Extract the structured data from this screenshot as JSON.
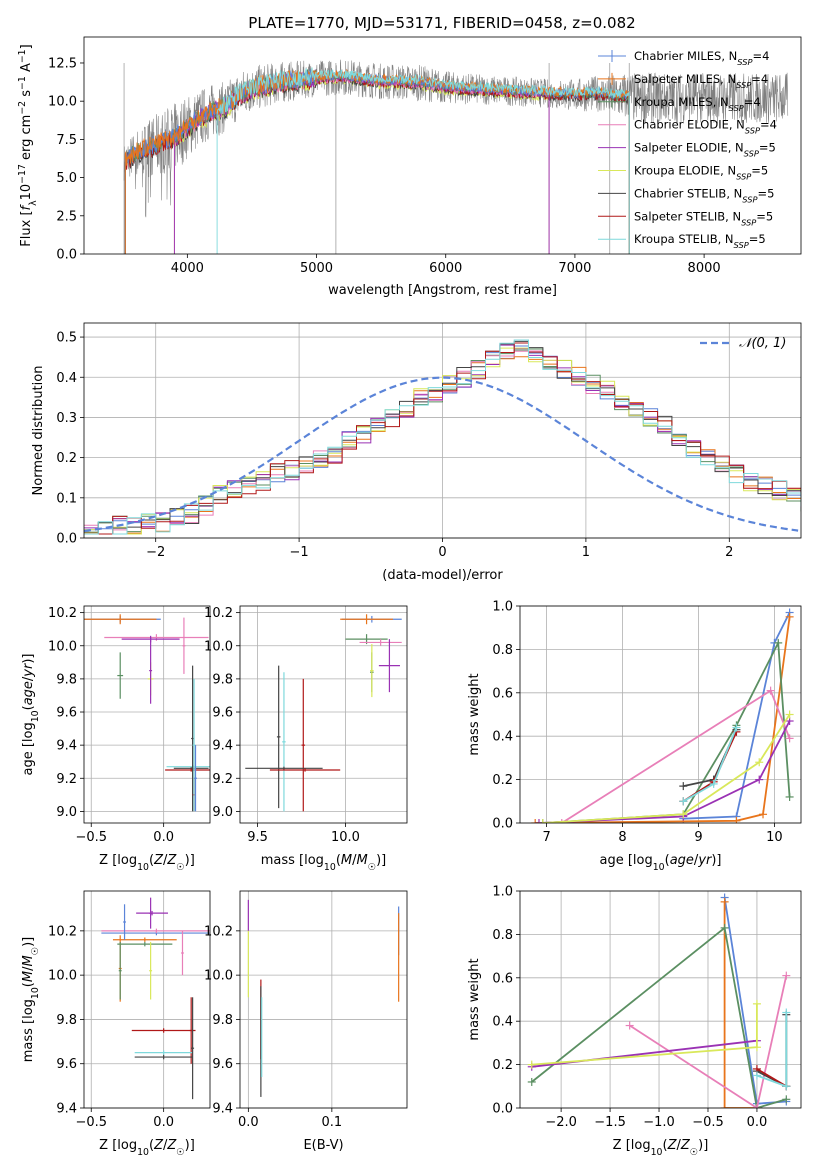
{
  "figure_title": "PLATE=1770, MJD=53171, FIBERID=0458, z=0.082",
  "colors": {
    "Chabrier MILES": "#5b84d8",
    "Salpeter MILES": "#e8751c",
    "Kroupa MILES": "#5b8f62",
    "Chabrier ELODIE": "#e87fb8",
    "Salpeter ELODIE": "#9a32b4",
    "Kroupa ELODIE": "#d9e85a",
    "Chabrier STELIB": "#444444",
    "Salpeter STELIB": "#b01818",
    "Kroupa STELIB": "#7fd9dc",
    "data": "#808080"
  },
  "chart_data": [
    {
      "id": "spectrum",
      "type": "line",
      "title": "PLATE=1770, MJD=53171, FIBERID=0458, z=0.082",
      "xlabel": "wavelength [Angstrom, rest frame]",
      "ylabel": "Flux [f_λ 10^-17 erg cm^-2 s^-1 A^-1]",
      "xlim": [
        3200,
        8750
      ],
      "ylim": [
        0,
        14.2
      ],
      "xticks": [
        4000,
        5000,
        6000,
        7000,
        8000
      ],
      "yticks": [
        0.0,
        2.5,
        5.0,
        7.5,
        10.0,
        12.5
      ],
      "legend_position": "right",
      "legend": [
        {
          "label": "Chabrier MILES, N",
          "sub": "SSP",
          "tail": "=4",
          "color_key": "Chabrier MILES"
        },
        {
          "label": "Salpeter MILES, N",
          "sub": "SSP",
          "tail": "=4",
          "color_key": "Salpeter MILES"
        },
        {
          "label": "Kroupa MILES, N",
          "sub": "SSP",
          "tail": "=4",
          "color_key": "Kroupa MILES"
        },
        {
          "label": "Chabrier ELODIE, N",
          "sub": "SSP",
          "tail": "=4",
          "color_key": "Chabrier ELODIE"
        },
        {
          "label": "Salpeter ELODIE, N",
          "sub": "SSP",
          "tail": "=5",
          "color_key": "Salpeter ELODIE"
        },
        {
          "label": "Kroupa ELODIE, N",
          "sub": "SSP",
          "tail": "=5",
          "color_key": "Kroupa ELODIE"
        },
        {
          "label": "Chabrier STELIB, N",
          "sub": "SSP",
          "tail": "=5",
          "color_key": "Chabrier STELIB"
        },
        {
          "label": "Salpeter STELIB, N",
          "sub": "SSP",
          "tail": "=5",
          "color_key": "Salpeter STELIB"
        },
        {
          "label": "Kroupa STELIB, N",
          "sub": "SSP",
          "tail": "=5",
          "color_key": "Kroupa STELIB"
        }
      ],
      "model_continuum": {
        "x": [
          3510,
          3600,
          3700,
          3800,
          3900,
          4000,
          4100,
          4200,
          4300,
          4400,
          4500,
          4700,
          5000,
          5200,
          5500,
          5800,
          6000,
          6200,
          6400,
          6600,
          6800,
          7000,
          7200,
          7300
        ],
        "y": [
          6.0,
          6.6,
          6.9,
          7.3,
          7.6,
          8.3,
          8.9,
          9.4,
          9.6,
          10.4,
          10.8,
          11.2,
          11.5,
          11.6,
          11.3,
          11.2,
          10.9,
          10.8,
          10.7,
          10.6,
          10.5,
          10.4,
          10.5,
          10.3
        ]
      },
      "data_envelope": {
        "x": [
          3510,
          3700,
          3900,
          4100,
          4300,
          4600,
          5000,
          5400,
          5800,
          6000,
          6400,
          6800,
          7000,
          7200,
          7400
        ],
        "noise": [
          1.0,
          1.6,
          1.9,
          1.6,
          1.4,
          1.2,
          1.0,
          1.0,
          1.0,
          0.9,
          0.8,
          0.8,
          0.9,
          1.0,
          1.4
        ]
      }
    },
    {
      "id": "residual-histogram",
      "type": "histogram",
      "xlabel": "(data-model)/error",
      "ylabel": "Normed distribution",
      "xlim": [
        -2.5,
        2.5
      ],
      "ylim": [
        0,
        0.535
      ],
      "xticks": [
        -2,
        -1,
        0,
        1,
        2
      ],
      "yticks": [
        0.0,
        0.1,
        0.2,
        0.3,
        0.4,
        0.5
      ],
      "legend_label": "𝒩(0, 1)",
      "legend_position": "upper right",
      "bin_width": 0.1,
      "bin_start": -2.5,
      "base_density": [
        0.02,
        0.02,
        0.03,
        0.03,
        0.04,
        0.04,
        0.05,
        0.06,
        0.08,
        0.11,
        0.12,
        0.13,
        0.14,
        0.16,
        0.17,
        0.18,
        0.2,
        0.21,
        0.24,
        0.26,
        0.28,
        0.3,
        0.32,
        0.35,
        0.36,
        0.38,
        0.4,
        0.42,
        0.44,
        0.46,
        0.47,
        0.46,
        0.44,
        0.42,
        0.4,
        0.38,
        0.37,
        0.34,
        0.32,
        0.3,
        0.28,
        0.25,
        0.22,
        0.2,
        0.18,
        0.16,
        0.14,
        0.13,
        0.12,
        0.1,
        0.09,
        0.08,
        0.07,
        0.06,
        0.05,
        0.04,
        0.03,
        0.03,
        0.03,
        0.02,
        0.02,
        0.02,
        0.02,
        0.02,
        0.02,
        0.02,
        0.02,
        0.02,
        0.02,
        0.02
      ],
      "normal_curve": {
        "mean": 0,
        "sigma": 1
      }
    },
    {
      "id": "age-vs-z",
      "type": "errorbar",
      "xlabel": "Z [log10(Z/Z☉)]",
      "ylabel": "age  [log10(age/yr)]",
      "xlim": [
        -0.55,
        0.32
      ],
      "ylim": [
        8.93,
        10.24
      ],
      "xticks": [
        -0.5,
        0.0
      ],
      "xtick_labels": [
        "−0.5",
        "0.0"
      ],
      "yticks": [
        9.0,
        9.2,
        9.4,
        9.6,
        9.8,
        10.0,
        10.2
      ],
      "points": [
        {
          "s": "Chabrier MILES",
          "x": -0.3,
          "xerr": 0.28,
          "y": 10.16,
          "yerr": 0.02
        },
        {
          "s": "Salpeter MILES",
          "x": -0.3,
          "xerr": 0.25,
          "y": 10.16,
          "yerr": 0.03
        },
        {
          "s": "Kroupa MILES",
          "x": -0.3,
          "xerr": 0.02,
          "y": 9.82,
          "yerr": 0.14
        },
        {
          "s": "Chabrier ELODIE",
          "x": -0.05,
          "xerr": 0.36,
          "y": 10.05,
          "yerr": 0.02
        },
        {
          "s": "Salpeter ELODIE",
          "x": -0.09,
          "xerr": 0.2,
          "y": 10.04,
          "yerr": 0.02
        },
        {
          "s": "Kroupa ELODIE",
          "x": -0.09,
          "xerr": 0.02,
          "y": 9.8,
          "yerr": 0.1
        },
        {
          "s": "Chabrier STELIB",
          "x": 0.19,
          "xerr": 0.12,
          "y": 9.26,
          "yerr": 0.01
        },
        {
          "s": "Salpeter STELIB",
          "x": 0.19,
          "xerr": 0.18,
          "y": 9.25,
          "yerr": 0.01
        },
        {
          "s": "Kroupa STELIB",
          "x": 0.2,
          "xerr": 0.18,
          "y": 9.27,
          "yerr": 0.01
        },
        {
          "s": "Chabrier STELIB",
          "x": 0.2,
          "xerr": 0.01,
          "y": 9.44,
          "yerr": 0.44
        },
        {
          "s": "Salpeter STELIB",
          "x": 0.21,
          "xerr": 0.01,
          "y": 9.1,
          "yerr": 0.1
        },
        {
          "s": "Kroupa STELIB",
          "x": 0.21,
          "xerr": 0.01,
          "y": 9.4,
          "yerr": 0.4
        },
        {
          "s": "Chabrier ELODIE",
          "x": 0.14,
          "xerr": 0.01,
          "y": 10.0,
          "yerr": 0.17
        },
        {
          "s": "Salpeter ELODIE",
          "x": -0.09,
          "xerr": 0.01,
          "y": 9.85,
          "yerr": 0.2
        },
        {
          "s": "Chabrier MILES",
          "x": 0.22,
          "xerr": 0.01,
          "y": 9.2,
          "yerr": 0.2
        }
      ]
    },
    {
      "id": "age-vs-mass",
      "type": "errorbar",
      "xlabel": "mass [log10(M/M☉)]",
      "ylabel": "",
      "xlim": [
        9.4,
        10.35
      ],
      "ylim": [
        8.93,
        10.24
      ],
      "xticks": [
        9.5,
        10.0
      ],
      "xtick_labels": [
        "9.5",
        "10.0"
      ],
      "yticks": [
        9.0,
        9.2,
        9.4,
        9.6,
        9.8,
        10.0,
        10.2
      ],
      "points": [
        {
          "s": "Chabrier MILES",
          "x": 10.15,
          "xerr": 0.17,
          "y": 10.16,
          "yerr": 0.02
        },
        {
          "s": "Salpeter MILES",
          "x": 10.12,
          "xerr": 0.15,
          "y": 10.16,
          "yerr": 0.03
        },
        {
          "s": "Kroupa MILES",
          "x": 10.12,
          "xerr": 0.12,
          "y": 10.04,
          "yerr": 0.03
        },
        {
          "s": "Kroupa MILES",
          "x": 10.15,
          "xerr": 0.01,
          "y": 9.84,
          "yerr": 0.12
        },
        {
          "s": "Chabrier ELODIE",
          "x": 10.2,
          "xerr": 0.12,
          "y": 10.02,
          "yerr": 0.02
        },
        {
          "s": "Salpeter ELODIE",
          "x": 10.25,
          "xerr": 0.06,
          "y": 9.88,
          "yerr": 0.16
        },
        {
          "s": "Kroupa ELODIE",
          "x": 10.15,
          "xerr": 0.01,
          "y": 9.85,
          "yerr": 0.16
        },
        {
          "s": "Chabrier STELIB",
          "x": 9.62,
          "xerr": 0.01,
          "y": 9.45,
          "yerr": 0.43
        },
        {
          "s": "Kroupa STELIB",
          "x": 9.65,
          "xerr": 0.01,
          "y": 9.42,
          "yerr": 0.42
        },
        {
          "s": "Salpeter STELIB",
          "x": 9.76,
          "xerr": 0.01,
          "y": 9.4,
          "yerr": 0.4
        },
        {
          "s": "Chabrier STELIB",
          "x": 9.65,
          "xerr": 0.22,
          "y": 9.26,
          "yerr": 0.01
        },
        {
          "s": "Salpeter STELIB",
          "x": 9.77,
          "xerr": 0.2,
          "y": 9.25,
          "yerr": 0.01
        }
      ]
    },
    {
      "id": "massweight-vs-age",
      "type": "line",
      "xlabel": "age  [log10(age/yr)]",
      "ylabel": "mass weight",
      "xlim": [
        6.65,
        10.35
      ],
      "ylim": [
        0,
        1.0
      ],
      "xticks": [
        7,
        8,
        9,
        10
      ],
      "yticks": [
        0.0,
        0.2,
        0.4,
        0.6,
        0.8,
        1.0
      ],
      "series": [
        {
          "s": "Chabrier MILES",
          "x": [
            8.8,
            9.5,
            10.0,
            10.2
          ],
          "y": [
            0.02,
            0.03,
            0.83,
            0.97
          ]
        },
        {
          "s": "Salpeter MILES",
          "x": [
            6.85,
            9.5,
            9.85,
            10.2
          ],
          "y": [
            0.0,
            0.01,
            0.04,
            0.95
          ]
        },
        {
          "s": "Kroupa MILES",
          "x": [
            6.95,
            8.8,
            9.5,
            10.05,
            10.2
          ],
          "y": [
            0.0,
            0.04,
            0.45,
            0.83,
            0.12
          ]
        },
        {
          "s": "Chabrier ELODIE",
          "x": [
            7.2,
            9.95,
            10.2
          ],
          "y": [
            0.0,
            0.61,
            0.39
          ]
        },
        {
          "s": "Salpeter ELODIE",
          "x": [
            6.9,
            8.8,
            9.8,
            10.2
          ],
          "y": [
            0.0,
            0.03,
            0.2,
            0.47
          ]
        },
        {
          "s": "Kroupa ELODIE",
          "x": [
            6.95,
            8.8,
            9.8,
            10.2
          ],
          "y": [
            0.0,
            0.04,
            0.28,
            0.5
          ]
        },
        {
          "s": "Chabrier STELIB",
          "x": [
            8.8,
            9.2,
            9.5
          ],
          "y": [
            0.17,
            0.2,
            0.43
          ]
        },
        {
          "s": "Salpeter STELIB",
          "x": [
            8.8,
            9.2,
            9.5
          ],
          "y": [
            0.1,
            0.19,
            0.42
          ]
        },
        {
          "s": "Kroupa STELIB",
          "x": [
            8.8,
            9.2,
            9.5
          ],
          "y": [
            0.1,
            0.18,
            0.44
          ]
        }
      ]
    },
    {
      "id": "mass-vs-z",
      "type": "errorbar",
      "xlabel": "Z [log10(Z/Z☉)]",
      "ylabel": "mass [log10(M/M☉)]",
      "xlim": [
        -0.55,
        0.32
      ],
      "ylim": [
        9.4,
        10.38
      ],
      "xticks": [
        -0.5,
        0.0
      ],
      "xtick_labels": [
        "−0.5",
        "0.0"
      ],
      "yticks": [
        9.4,
        9.6,
        9.8,
        10.0,
        10.2
      ],
      "points": [
        {
          "s": "Chabrier MILES",
          "x": -0.05,
          "xerr": 0.38,
          "y": 10.19,
          "yerr": 0.01
        },
        {
          "s": "Chabrier ELODIE",
          "x": -0.05,
          "xerr": 0.38,
          "y": 10.2,
          "yerr": 0.01
        },
        {
          "s": "Salpeter MILES",
          "x": -0.13,
          "xerr": 0.22,
          "y": 10.16,
          "yerr": 0.01
        },
        {
          "s": "Kroupa MILES",
          "x": -0.13,
          "xerr": 0.19,
          "y": 10.14,
          "yerr": 0.01
        },
        {
          "s": "Salpeter ELODIE",
          "x": -0.08,
          "xerr": 0.11,
          "y": 10.28,
          "yerr": 0.01
        },
        {
          "s": "Chabrier MILES",
          "x": -0.27,
          "xerr": 0.01,
          "y": 10.24,
          "yerr": 0.08
        },
        {
          "s": "Salpeter MILES",
          "x": -0.3,
          "xerr": 0.01,
          "y": 10.03,
          "yerr": 0.15
        },
        {
          "s": "Kroupa MILES",
          "x": -0.3,
          "xerr": 0.01,
          "y": 10.02,
          "yerr": 0.13
        },
        {
          "s": "Kroupa ELODIE",
          "x": -0.09,
          "xerr": 0.01,
          "y": 10.02,
          "yerr": 0.13
        },
        {
          "s": "Salpeter ELODIE",
          "x": -0.09,
          "xerr": 0.01,
          "y": 10.28,
          "yerr": 0.07
        },
        {
          "s": "Chabrier ELODIE",
          "x": 0.13,
          "xerr": 0.01,
          "y": 10.1,
          "yerr": 0.1
        },
        {
          "s": "Salpeter STELIB",
          "x": 0.0,
          "xerr": 0.22,
          "y": 9.75,
          "yerr": 0.01
        },
        {
          "s": "Salpeter STELIB",
          "x": 0.19,
          "xerr": 0.01,
          "y": 9.75,
          "yerr": 0.15
        },
        {
          "s": "Kroupa STELIB",
          "x": 0.0,
          "xerr": 0.2,
          "y": 9.65,
          "yerr": 0.01
        },
        {
          "s": "Chabrier STELIB",
          "x": 0.0,
          "xerr": 0.2,
          "y": 9.63,
          "yerr": 0.01
        },
        {
          "s": "Chabrier STELIB",
          "x": 0.2,
          "xerr": 0.01,
          "y": 9.67,
          "yerr": 0.23
        }
      ]
    },
    {
      "id": "mass-vs-ebv",
      "type": "errorbar",
      "xlabel": "E(B-V)",
      "ylabel": "",
      "xlim": [
        -0.01,
        0.19
      ],
      "ylim": [
        9.4,
        10.38
      ],
      "xticks": [
        0.0,
        0.1
      ],
      "xtick_labels": [
        "0.0",
        "0.1"
      ],
      "yticks": [
        9.4,
        9.6,
        9.8,
        10.0,
        10.2
      ],
      "points": [
        {
          "s": "Salpeter ELODIE",
          "x": 0.0,
          "xerr": 0.0,
          "y": 10.27,
          "yerr": 0.07
        },
        {
          "s": "Kroupa ELODIE",
          "x": 0.0,
          "xerr": 0.0,
          "y": 10.05,
          "yerr": 0.15
        },
        {
          "s": "Chabrier MILES",
          "x": 0.18,
          "xerr": 0.0,
          "y": 10.2,
          "yerr": 0.11
        },
        {
          "s": "Salpeter MILES",
          "x": 0.18,
          "xerr": 0.0,
          "y": 10.08,
          "yerr": 0.2
        },
        {
          "s": "Salpeter STELIB",
          "x": 0.015,
          "xerr": 0.0,
          "y": 9.8,
          "yerr": 0.18
        },
        {
          "s": "Chabrier STELIB",
          "x": 0.015,
          "xerr": 0.0,
          "y": 9.7,
          "yerr": 0.25
        },
        {
          "s": "Kroupa STELIB",
          "x": 0.016,
          "xerr": 0.0,
          "y": 9.72,
          "yerr": 0.18
        }
      ]
    },
    {
      "id": "massweight-vs-z",
      "type": "line",
      "xlabel": "Z [log10(Z/Z☉)]",
      "ylabel": "mass weight",
      "xlim": [
        -2.42,
        0.45
      ],
      "ylim": [
        0,
        1.0
      ],
      "xticks": [
        -2.0,
        -1.5,
        -1.0,
        -0.5,
        0.0
      ],
      "xtick_labels": [
        "−2.0",
        "−1.5",
        "−1.0",
        "−0.5",
        "0.0"
      ],
      "yticks": [
        0.0,
        0.2,
        0.4,
        0.6,
        0.8,
        1.0
      ],
      "series": [
        {
          "s": "Chabrier MILES",
          "x": [
            -0.33,
            0.0,
            0.3
          ],
          "y": [
            0.97,
            0.02,
            0.03
          ]
        },
        {
          "s": "Salpeter MILES",
          "x": [
            -0.33,
            -0.33,
            0.0
          ],
          "y": [
            0.95,
            0.0,
            0.0
          ]
        },
        {
          "s": "Kroupa MILES",
          "x": [
            -2.3,
            -0.33,
            0.0,
            0.3
          ],
          "y": [
            0.12,
            0.83,
            0.0,
            0.04
          ]
        },
        {
          "s": "Chabrier ELODIE",
          "x": [
            -1.3,
            0.0,
            0.3
          ],
          "y": [
            0.38,
            0.0,
            0.61
          ]
        },
        {
          "s": "Salpeter ELODIE",
          "x": [
            -2.3,
            0.0
          ],
          "y": [
            0.19,
            0.31
          ]
        },
        {
          "s": "Kroupa ELODIE",
          "x": [
            -2.3,
            0.0,
            0.0
          ],
          "y": [
            0.2,
            0.28,
            0.48
          ]
        },
        {
          "s": "Chabrier STELIB",
          "x": [
            0.0,
            0.3,
            0.3
          ],
          "y": [
            0.17,
            0.1,
            0.43
          ]
        },
        {
          "s": "Salpeter STELIB",
          "x": [
            0.0,
            0.3
          ],
          "y": [
            0.18,
            0.1
          ]
        },
        {
          "s": "Kroupa STELIB",
          "x": [
            0.0,
            0.3,
            0.3
          ],
          "y": [
            0.15,
            0.1,
            0.44
          ]
        }
      ]
    }
  ]
}
